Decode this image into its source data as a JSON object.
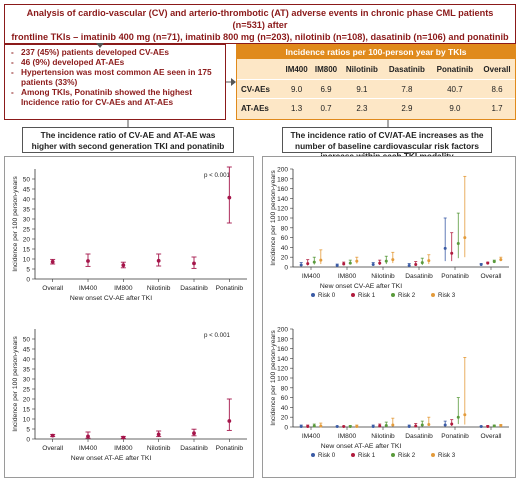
{
  "header": {
    "line1": "Analysis of cardio-vascular (CV) and arterio-thrombotic (AT) adverse events in chronic phase CML patients (n=531) after",
    "line2": "frontline TKIs – imatinib 400 mg (n=71), imatinib 800 mg (n=203), nilotinib (n=108), dasatinib (n=106) and ponatinib (n=43)"
  },
  "summary": [
    "237 (45%) patients developed CV-AEs",
    "46 (9%) developed AT-AEs",
    "Hypertension was most common AE seen in 175 patients (33%)",
    "Among TKIs, Ponatinib showed the highest Incidence ratio for CV-AEs and AT-AEs"
  ],
  "ratio_table": {
    "title": "Incidence ratios per 100-person year by TKIs",
    "columns": [
      "",
      "IM400",
      "IM800",
      "Nilotinib",
      "Dasatinib",
      "Ponatinib",
      "Overall"
    ],
    "rows": [
      {
        "label": "CV-AEs",
        "values": [
          "9.0",
          "6.9",
          "9.1",
          "7.8",
          "40.7",
          "8.6"
        ]
      },
      {
        "label": "AT-AEs",
        "values": [
          "1.3",
          "0.7",
          "2.3",
          "2.9",
          "9.0",
          "1.7"
        ]
      }
    ]
  },
  "left_title": "The incidence ratio of CV-AE and AT-AE was higher with second generation TKI and ponatinib",
  "right_title": "The incidence ratio of CV/AT-AE increases as the number of baseline cardiovascular risk factors increase within each TKI modality",
  "colors": {
    "dark_red": "#8b1a1a",
    "orange": "#e08a1c",
    "point": "#a5154a"
  },
  "chart_data": [
    {
      "type": "scatter",
      "xlabel": "New onset CV-AE after TKI",
      "ylabel": "Incidence per 100 person-years",
      "pvalue": "p < 0.001",
      "categories": [
        "Overall",
        "IM400",
        "IM800",
        "Nilotinib",
        "Dasatinib",
        "Ponatinib"
      ],
      "values": [
        8.6,
        9.0,
        6.9,
        9.1,
        7.8,
        40.7
      ],
      "lower": [
        7.5,
        6.3,
        5.6,
        6.5,
        5.3,
        28.0
      ],
      "upper": [
        9.8,
        12.5,
        8.4,
        12.5,
        11.0,
        56.0
      ],
      "yticks": [
        0,
        5,
        10,
        15,
        20,
        25,
        30,
        35,
        40,
        45,
        50
      ],
      "ylim": [
        0,
        55
      ]
    },
    {
      "type": "scatter",
      "xlabel": "New onset AT-AE after TKI",
      "ylabel": "Incidence per 100 person-years",
      "pvalue": "p < 0.001",
      "categories": [
        "Overall",
        "IM400",
        "IM800",
        "Nilotinib",
        "Dasatinib",
        "Ponatinib"
      ],
      "values": [
        1.7,
        1.3,
        0.7,
        2.3,
        2.9,
        9.0
      ],
      "lower": [
        1.2,
        0.4,
        0.3,
        1.2,
        1.6,
        4.3
      ],
      "upper": [
        2.3,
        3.5,
        1.3,
        4.0,
        4.9,
        20.0
      ],
      "yticks": [
        0,
        5,
        10,
        15,
        20,
        25,
        30,
        35,
        40,
        45,
        50
      ],
      "ylim": [
        0,
        55
      ]
    },
    {
      "type": "scatter",
      "xlabel": "New onset CV-AE after TKI",
      "ylabel": "Incidence per 100 person-years",
      "categories": [
        "IM400",
        "IM800",
        "Nilotinib",
        "Dasatinib",
        "Ponatinib",
        "Overall"
      ],
      "yticks": [
        0,
        20,
        40,
        60,
        80,
        100,
        120,
        140,
        160,
        180,
        200
      ],
      "ylim": [
        0,
        200
      ],
      "legend_position": "bottom",
      "series": [
        {
          "name": "Risk 0",
          "color": "#3b5ba5",
          "values": [
            4,
            3,
            5,
            3,
            38,
            5
          ],
          "lower": [
            2,
            2,
            3,
            1,
            12,
            4
          ],
          "upper": [
            9,
            6,
            9,
            7,
            100,
            7
          ]
        },
        {
          "name": "Risk 1",
          "color": "#b01c3e",
          "values": [
            7,
            6,
            8,
            5,
            28,
            8
          ],
          "lower": [
            3,
            4,
            4,
            2,
            12,
            6
          ],
          "upper": [
            15,
            10,
            14,
            11,
            70,
            10
          ]
        },
        {
          "name": "Risk 2",
          "color": "#5a9a3c",
          "values": [
            10,
            8,
            12,
            9,
            48,
            11
          ],
          "lower": [
            5,
            5,
            6,
            4,
            18,
            9
          ],
          "upper": [
            20,
            14,
            22,
            18,
            110,
            14
          ]
        },
        {
          "name": "Risk 3",
          "color": "#e39b3b",
          "values": [
            14,
            12,
            15,
            13,
            60,
            15
          ],
          "lower": [
            6,
            7,
            8,
            6,
            20,
            12
          ],
          "upper": [
            35,
            20,
            30,
            25,
            185,
            20
          ]
        }
      ]
    },
    {
      "type": "scatter",
      "xlabel": "New onset AT-AE after TKI",
      "ylabel": "Incidence per 100 person-years",
      "categories": [
        "IM400",
        "IM800",
        "Nilotinib",
        "Dasatinib",
        "Ponatinib",
        "Overall"
      ],
      "yticks": [
        0,
        20,
        40,
        60,
        80,
        100,
        120,
        140,
        160,
        180,
        200
      ],
      "ylim": [
        0,
        200
      ],
      "legend_position": "bottom",
      "series": [
        {
          "name": "Risk 0",
          "color": "#3b5ba5",
          "values": [
            1,
            1,
            1,
            1,
            4,
            1
          ],
          "lower": [
            0,
            0,
            0,
            0,
            1,
            0
          ],
          "upper": [
            4,
            2,
            4,
            4,
            12,
            2
          ]
        },
        {
          "name": "Risk 1",
          "color": "#b01c3e",
          "values": [
            1,
            1,
            2,
            2,
            6,
            1
          ],
          "lower": [
            0,
            0,
            0,
            0,
            2,
            1
          ],
          "upper": [
            4,
            2,
            6,
            7,
            15,
            3
          ]
        },
        {
          "name": "Risk 2",
          "color": "#5a9a3c",
          "values": [
            2,
            1,
            3,
            4,
            20,
            2
          ],
          "lower": [
            0,
            0,
            1,
            1,
            6,
            1
          ],
          "upper": [
            6,
            3,
            10,
            12,
            60,
            4
          ]
        },
        {
          "name": "Risk 3",
          "color": "#e39b3b",
          "values": [
            2,
            1,
            4,
            5,
            25,
            3
          ],
          "lower": [
            0,
            0,
            1,
            2,
            5,
            1
          ],
          "upper": [
            8,
            4,
            18,
            20,
            142,
            5
          ]
        }
      ]
    }
  ]
}
